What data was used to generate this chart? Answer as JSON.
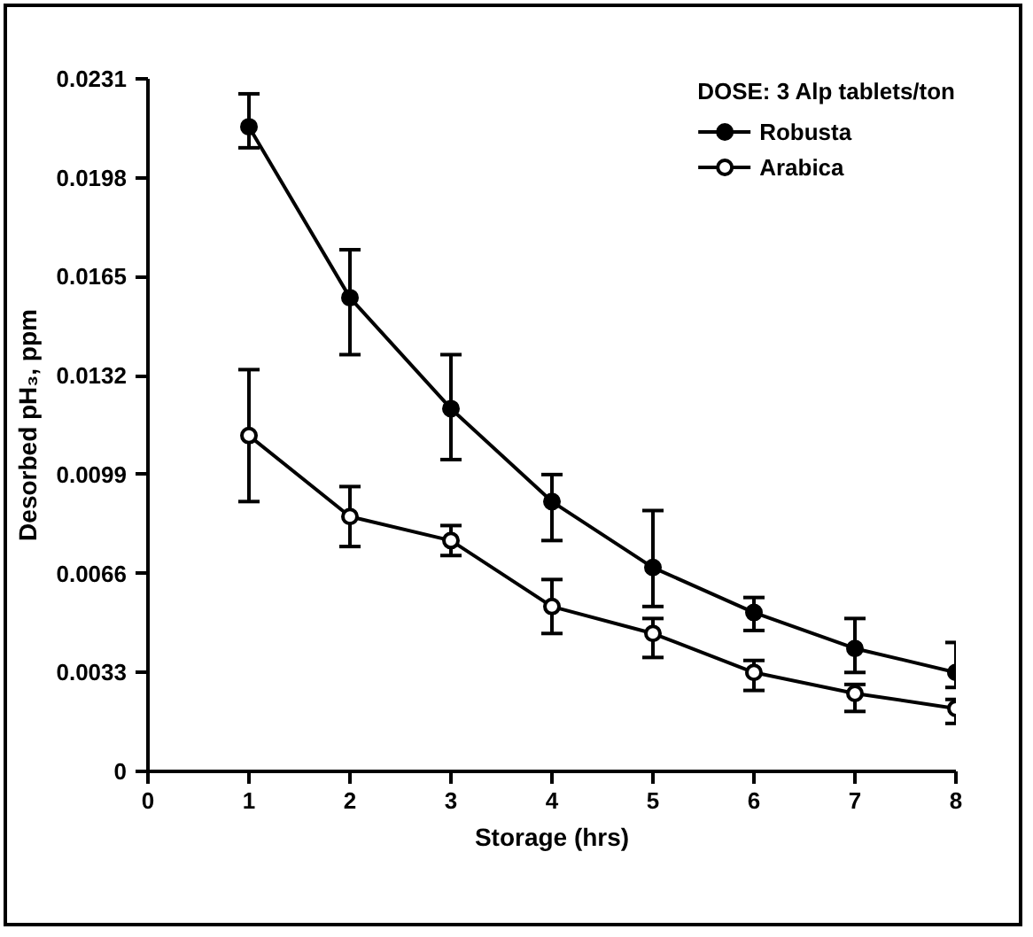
{
  "chart_data": {
    "type": "line",
    "xlabel": "Storage (hrs)",
    "ylabel": "Desorbed pH₃, ppm",
    "legend_title": "DOSE: 3 Alp tablets/ton",
    "x": [
      1,
      2,
      3,
      4,
      5,
      6,
      7,
      8
    ],
    "xlim": [
      0,
      8
    ],
    "xticks": [
      0,
      1,
      2,
      3,
      4,
      5,
      6,
      7,
      8
    ],
    "ylim": [
      0,
      0.0231
    ],
    "yticks": [
      0,
      {
        "value": 0.0033,
        "label": "0.0033"
      },
      {
        "value": 0.0066,
        "label": "0.0066"
      },
      {
        "value": 0.0099,
        "label": "0.0099"
      },
      {
        "value": 0.0132,
        "label": "0.0132"
      },
      {
        "value": 0.0165,
        "label": "0.0165"
      },
      {
        "value": 0.0198,
        "label": "0.0198"
      },
      {
        "value": 0.0231,
        "label": "0.0231"
      }
    ],
    "grid": false,
    "legend": "top right",
    "line_style": "solid",
    "series": [
      {
        "name": "Robusta",
        "color": "#000000",
        "marker": "circle",
        "values": [
          0.0215,
          0.0158,
          0.0121,
          0.009,
          0.0068,
          0.0053,
          0.0041,
          0.0033
        ],
        "errors": [
          [
            0.0208,
            0.0226
          ],
          [
            0.0139,
            0.0174
          ],
          [
            0.0104,
            0.0139
          ],
          [
            0.0077,
            0.0099
          ],
          [
            0.0055,
            0.0087
          ],
          [
            0.0047,
            0.0058
          ],
          [
            0.0033,
            0.0051
          ],
          [
            0.0028,
            0.0043
          ]
        ]
      },
      {
        "name": "Arabica",
        "color": "#000000",
        "marker": "circle_open",
        "values": [
          0.0112,
          0.0085,
          0.0077,
          0.0055,
          0.0046,
          0.0033,
          0.0026,
          0.0021
        ],
        "errors": [
          [
            0.009,
            0.0134
          ],
          [
            0.0075,
            0.0095
          ],
          [
            0.0072,
            0.0082
          ],
          [
            0.0046,
            0.0064
          ],
          [
            0.0038,
            0.0051
          ],
          [
            0.0027,
            0.0037
          ],
          [
            0.002,
            0.0029
          ],
          [
            0.0016,
            0.0024
          ]
        ]
      }
    ]
  }
}
